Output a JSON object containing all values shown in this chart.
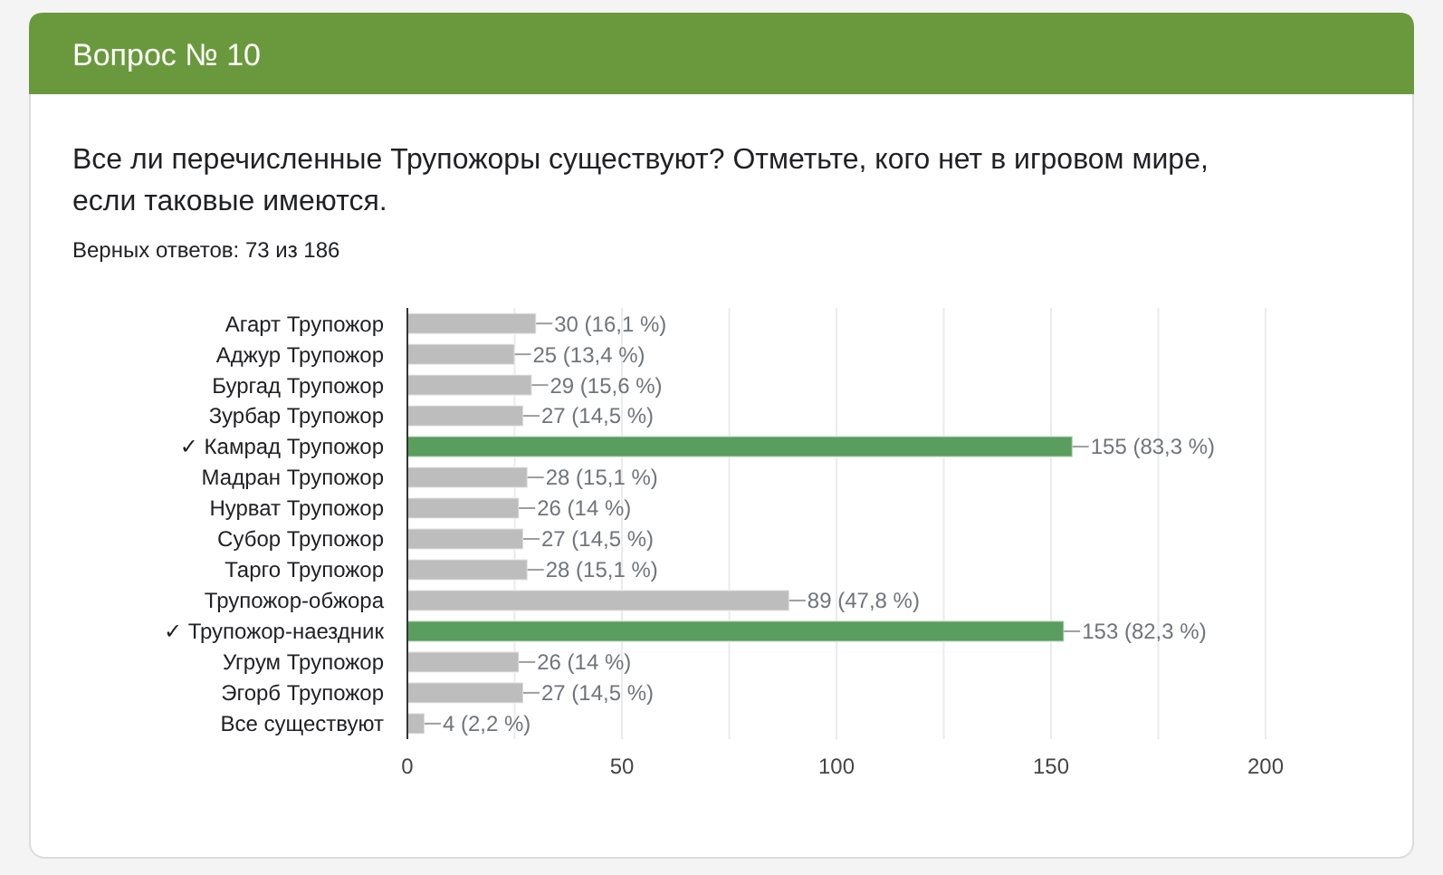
{
  "chart_data": {
    "type": "bar",
    "orientation": "horizontal",
    "title": "Вопрос № 10",
    "subtitle": "Все ли перечисленные Трупожоры существуют? Отметьте, кого нет в игровом мире, если таковые имеются.",
    "annotations": [
      "Верных ответов: 73 из 186"
    ],
    "categories": [
      "Агарт Трупожор",
      "Аджур Трупожор",
      "Бургад Трупожор",
      "Зурбар Трупожор",
      "✓ Камрад Трупожор",
      "Мадран Трупожор",
      "Нурват Трупожор",
      "Субор Трупожор",
      "Тарго Трупожор",
      "Трупожор-обжора",
      "✓ Трупожор-наездник",
      "Угрум Трупожор",
      "Эгорб Трупожор",
      "Все существуют"
    ],
    "values": [
      30,
      25,
      29,
      27,
      155,
      28,
      26,
      27,
      28,
      89,
      153,
      26,
      27,
      4
    ],
    "value_labels": [
      "30 (16,1 %)",
      "25 (13,4 %)",
      "29 (15,6 %)",
      "27 (14,5 %)",
      "155 (83,3 %)",
      "28 (15,1 %)",
      "26 (14 %)",
      "27 (14,5 %)",
      "28 (15,1 %)",
      "89 (47,8 %)",
      "153 (82,3 %)",
      "26 (14 %)",
      "27 (14,5 %)",
      "4 (2,2 %)"
    ],
    "colors": [
      "#bdbdbd",
      "#bdbdbd",
      "#bdbdbd",
      "#bdbdbd",
      "#599d5f",
      "#bdbdbd",
      "#bdbdbd",
      "#bdbdbd",
      "#bdbdbd",
      "#bdbdbd",
      "#599d5f",
      "#bdbdbd",
      "#bdbdbd",
      "#bdbdbd"
    ],
    "xlim": [
      0,
      200
    ],
    "xticks": [
      0,
      {
        "value": 25,
        "label": null
      },
      50,
      {
        "value": 75,
        "label": null
      },
      100,
      {
        "value": 125,
        "label": null
      },
      150,
      {
        "value": 175,
        "label": null
      },
      200
    ],
    "grid": "x"
  }
}
